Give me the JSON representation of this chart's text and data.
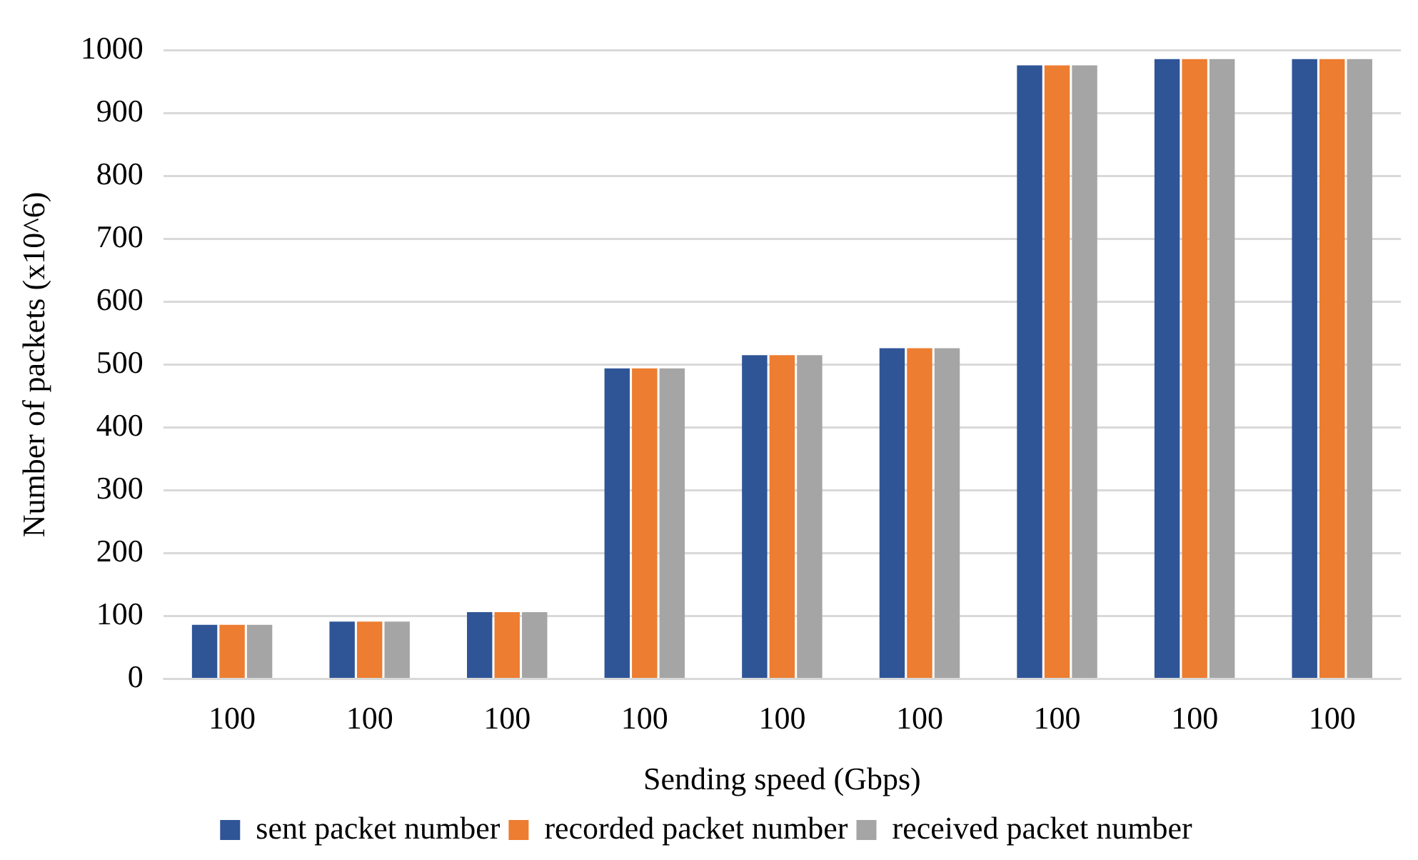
{
  "chart_data": {
    "type": "bar",
    "xlabel": "Sending speed (Gbps)",
    "ylabel": "Number of packets (x10^6)",
    "categories": [
      "100",
      "100",
      "100",
      "100",
      "100",
      "100",
      "100",
      "100",
      "100"
    ],
    "series": [
      {
        "name": "sent packet number",
        "color": "#2f5597",
        "values": [
          86,
          91,
          106,
          494,
          515,
          526,
          976,
          986,
          986
        ]
      },
      {
        "name": "recorded packet number",
        "color": "#ed7d31",
        "values": [
          86,
          91,
          106,
          494,
          515,
          526,
          976,
          986,
          986
        ]
      },
      {
        "name": "received packet number",
        "color": "#a5a5a5",
        "values": [
          86,
          91,
          106,
          494,
          515,
          526,
          976,
          986,
          986
        ]
      }
    ],
    "ylim": [
      0,
      1000
    ],
    "yticks": [
      0,
      100,
      200,
      300,
      400,
      500,
      600,
      700,
      800,
      900,
      1000
    ],
    "grid": "y",
    "legend": "bottom"
  }
}
